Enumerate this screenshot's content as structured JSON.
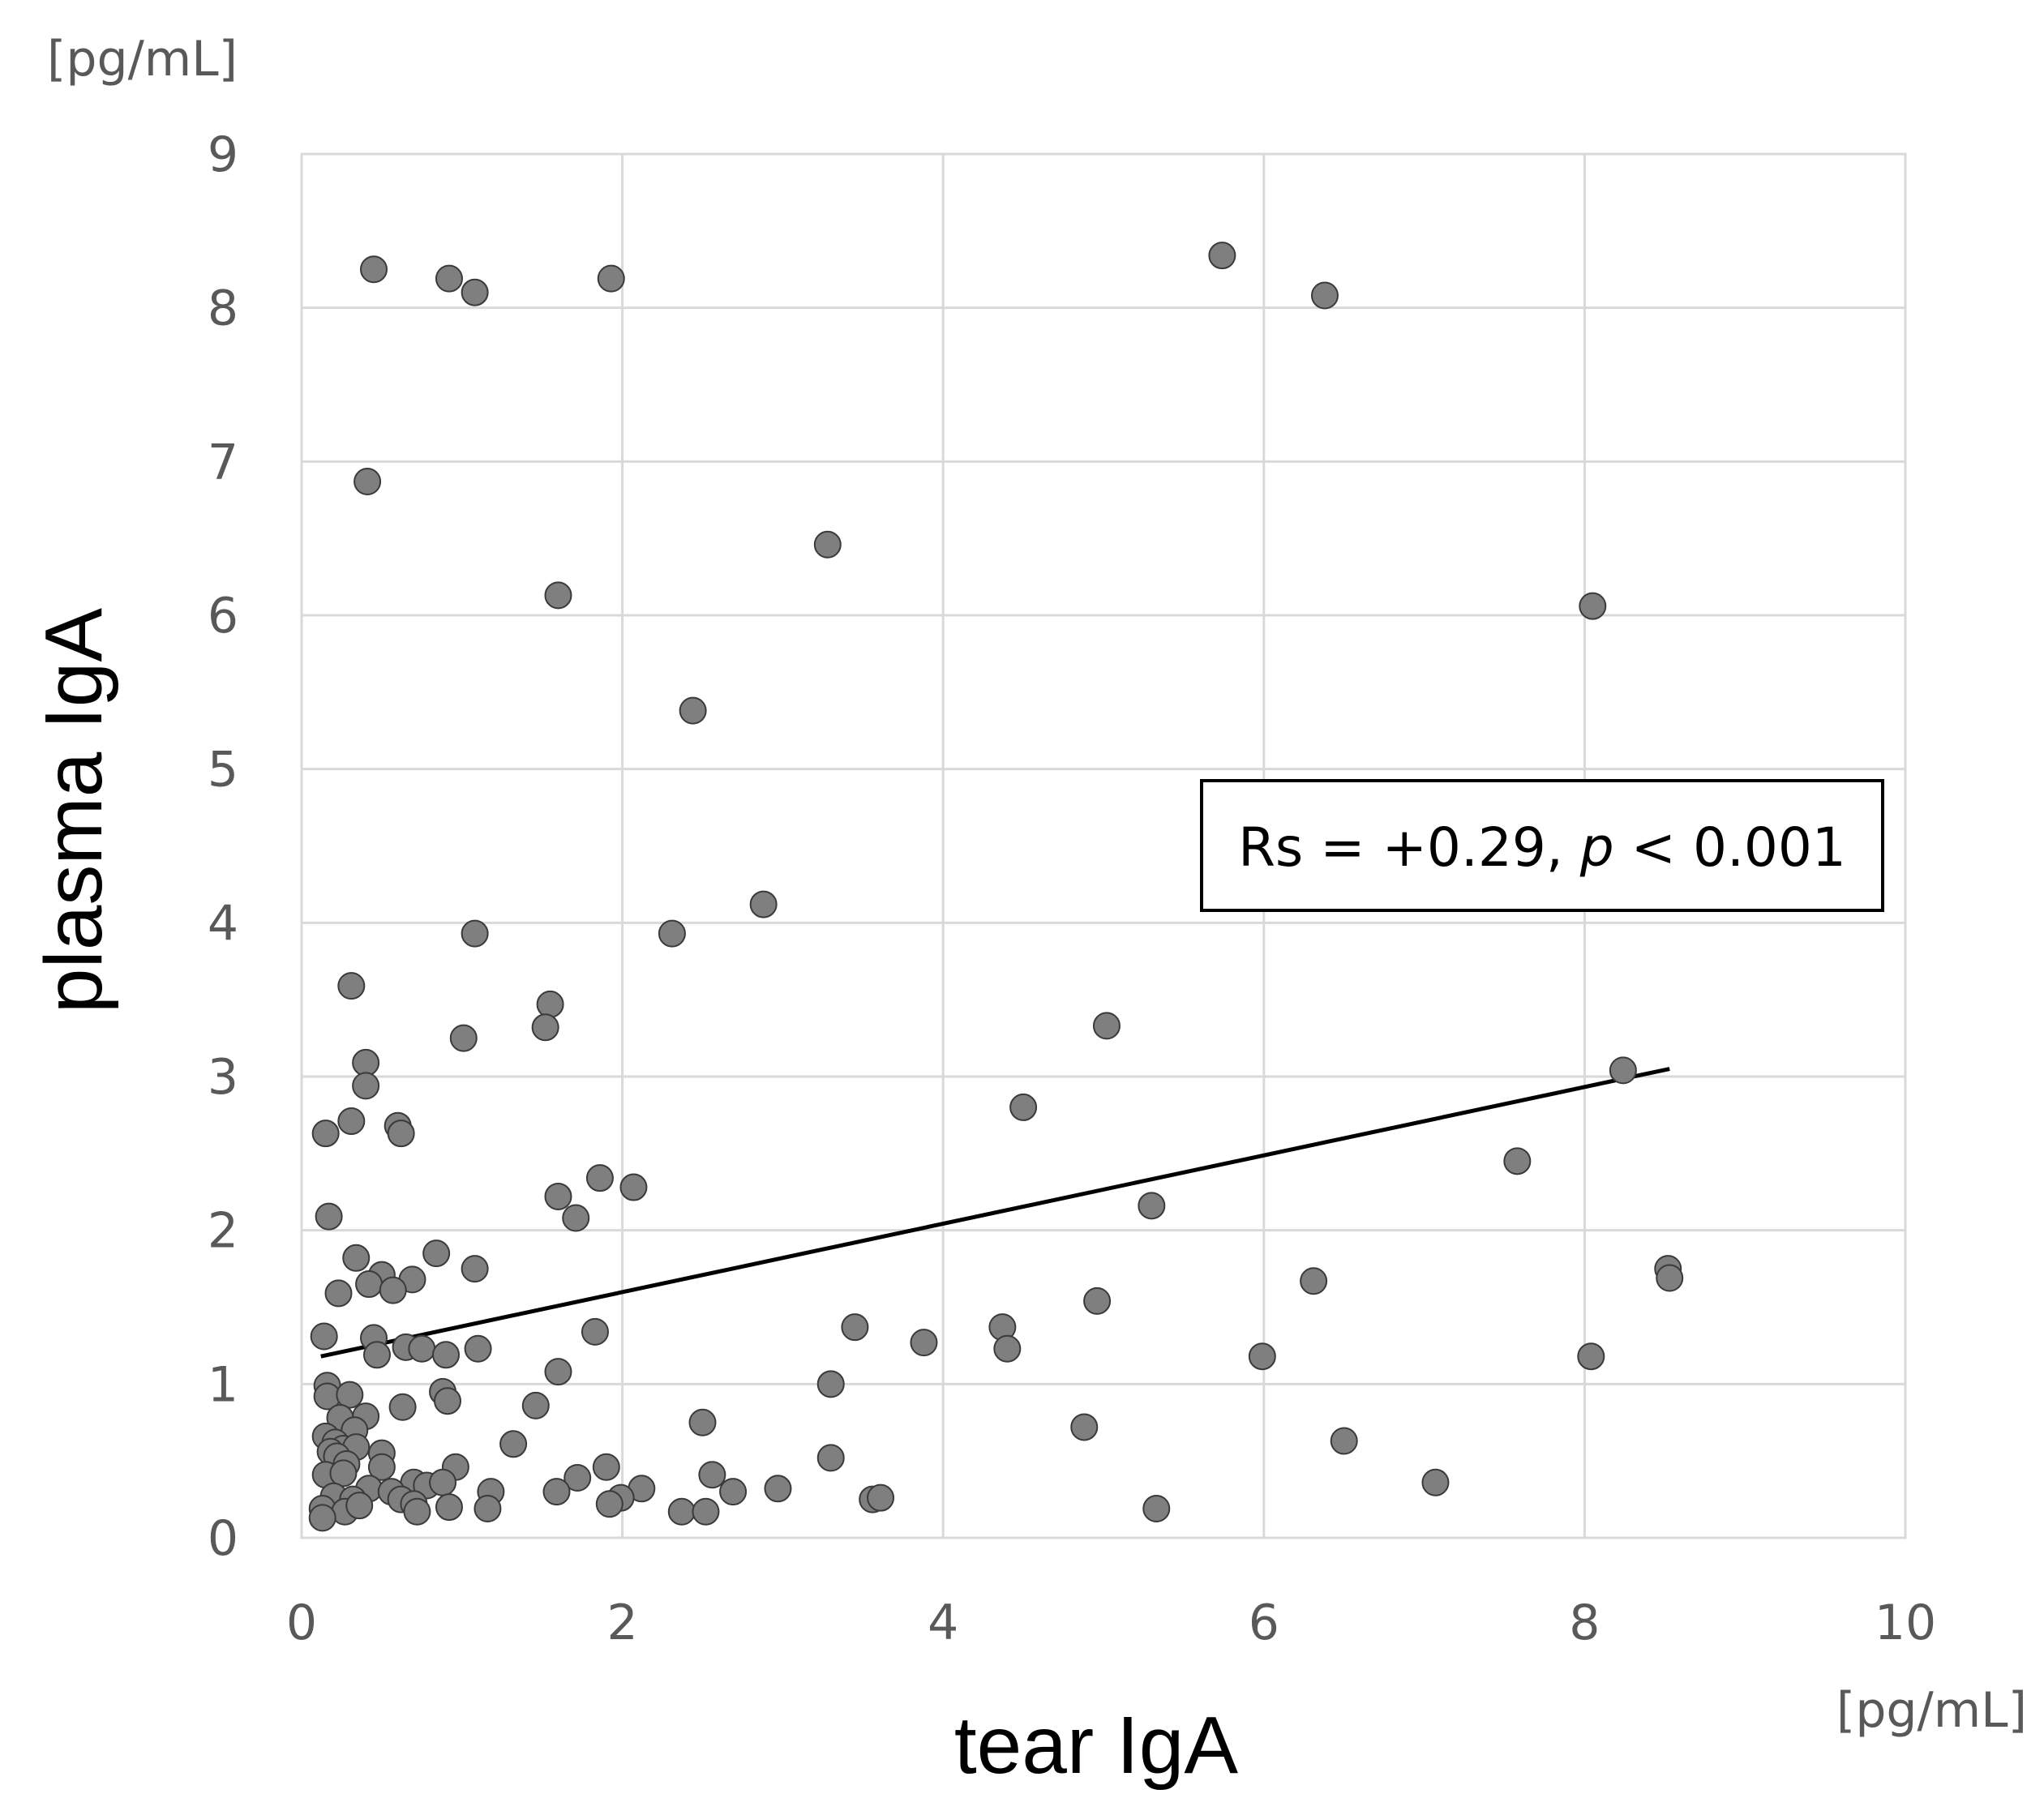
{
  "chart_data": {
    "type": "scatter",
    "xlabel": "tear IgA",
    "ylabel": "plasma IgA",
    "x_unit": "[pg/mL]",
    "y_unit": "[pg/mL]",
    "xlim": [
      0,
      10
    ],
    "ylim": [
      0,
      9
    ],
    "x_ticks": [
      "0",
      "2",
      "4",
      "6",
      "8",
      "10"
    ],
    "y_ticks": [
      "0",
      "1",
      "2",
      "3",
      "4",
      "5",
      "6",
      "7",
      "8",
      "9"
    ],
    "grid": true,
    "annotation": {
      "prefix": "Rs = +0.29, ",
      "italic": "p",
      "suffix": " < 0.001"
    },
    "trendline": {
      "x": [
        0.12,
        8.53
      ],
      "y": [
        1.18,
        3.05
      ]
    },
    "points": [
      [
        0.45,
        8.25
      ],
      [
        0.92,
        8.19
      ],
      [
        1.08,
        8.1
      ],
      [
        1.93,
        8.19
      ],
      [
        5.74,
        8.34
      ],
      [
        6.38,
        8.08
      ],
      [
        0.41,
        6.87
      ],
      [
        3.28,
        6.46
      ],
      [
        1.6,
        6.13
      ],
      [
        8.05,
        6.06
      ],
      [
        2.44,
        5.38
      ],
      [
        2.88,
        4.12
      ],
      [
        1.08,
        3.93
      ],
      [
        2.31,
        3.93
      ],
      [
        0.31,
        3.59
      ],
      [
        1.55,
        3.47
      ],
      [
        5.02,
        3.33
      ],
      [
        1.52,
        3.32
      ],
      [
        1.01,
        3.25
      ],
      [
        0.4,
        3.09
      ],
      [
        0.4,
        2.94
      ],
      [
        8.24,
        3.04
      ],
      [
        4.5,
        2.8
      ],
      [
        0.31,
        2.71
      ],
      [
        0.6,
        2.68
      ],
      [
        0.62,
        2.63
      ],
      [
        0.15,
        2.63
      ],
      [
        7.58,
        2.45
      ],
      [
        1.86,
        2.34
      ],
      [
        2.07,
        2.28
      ],
      [
        1.6,
        2.22
      ],
      [
        5.3,
        2.16
      ],
      [
        1.71,
        2.08
      ],
      [
        0.17,
        2.09
      ],
      [
        0.84,
        1.85
      ],
      [
        0.34,
        1.82
      ],
      [
        1.08,
        1.75
      ],
      [
        8.52,
        1.75
      ],
      [
        8.53,
        1.69
      ],
      [
        0.5,
        1.71
      ],
      [
        0.69,
        1.68
      ],
      [
        6.31,
        1.67
      ],
      [
        0.42,
        1.65
      ],
      [
        0.57,
        1.61
      ],
      [
        0.23,
        1.59
      ],
      [
        4.96,
        1.54
      ],
      [
        3.45,
        1.37
      ],
      [
        4.37,
        1.37
      ],
      [
        1.83,
        1.34
      ],
      [
        0.14,
        1.31
      ],
      [
        0.45,
        1.3
      ],
      [
        3.88,
        1.27
      ],
      [
        0.65,
        1.24
      ],
      [
        0.75,
        1.23
      ],
      [
        1.1,
        1.23
      ],
      [
        4.4,
        1.23
      ],
      [
        0.47,
        1.19
      ],
      [
        0.9,
        1.19
      ],
      [
        5.99,
        1.18
      ],
      [
        8.04,
        1.18
      ],
      [
        1.6,
        1.08
      ],
      [
        3.3,
        1.0
      ],
      [
        0.16,
        0.99
      ],
      [
        0.16,
        0.92
      ],
      [
        0.3,
        0.93
      ],
      [
        0.88,
        0.95
      ],
      [
        0.91,
        0.89
      ],
      [
        0.63,
        0.85
      ],
      [
        1.46,
        0.86
      ],
      [
        0.4,
        0.79
      ],
      [
        0.24,
        0.78
      ],
      [
        2.5,
        0.75
      ],
      [
        4.88,
        0.72
      ],
      [
        0.33,
        0.7
      ],
      [
        0.15,
        0.66
      ],
      [
        0.21,
        0.62
      ],
      [
        1.32,
        0.61
      ],
      [
        6.5,
        0.63
      ],
      [
        0.26,
        0.58
      ],
      [
        0.34,
        0.59
      ],
      [
        0.18,
        0.56
      ],
      [
        0.5,
        0.55
      ],
      [
        3.3,
        0.52
      ],
      [
        0.22,
        0.53
      ],
      [
        0.28,
        0.48
      ],
      [
        0.5,
        0.46
      ],
      [
        0.96,
        0.46
      ],
      [
        1.9,
        0.46
      ],
      [
        0.15,
        0.41
      ],
      [
        0.26,
        0.42
      ],
      [
        2.56,
        0.41
      ],
      [
        0.7,
        0.36
      ],
      [
        0.78,
        0.34
      ],
      [
        0.88,
        0.36
      ],
      [
        1.72,
        0.39
      ],
      [
        0.42,
        0.32
      ],
      [
        1.59,
        0.3
      ],
      [
        2.12,
        0.32
      ],
      [
        2.69,
        0.3
      ],
      [
        2.97,
        0.32
      ],
      [
        7.07,
        0.36
      ],
      [
        1.18,
        0.3
      ],
      [
        0.56,
        0.3
      ],
      [
        0.2,
        0.27
      ],
      [
        0.32,
        0.25
      ],
      [
        0.62,
        0.25
      ],
      [
        0.7,
        0.22
      ],
      [
        0.92,
        0.2
      ],
      [
        1.99,
        0.26
      ],
      [
        1.92,
        0.22
      ],
      [
        3.56,
        0.25
      ],
      [
        3.61,
        0.26
      ],
      [
        2.37,
        0.17
      ],
      [
        2.52,
        0.17
      ],
      [
        1.16,
        0.19
      ],
      [
        5.33,
        0.19
      ],
      [
        0.13,
        0.19
      ],
      [
        0.27,
        0.17
      ],
      [
        0.36,
        0.21
      ],
      [
        0.72,
        0.17
      ],
      [
        0.13,
        0.13
      ]
    ]
  }
}
